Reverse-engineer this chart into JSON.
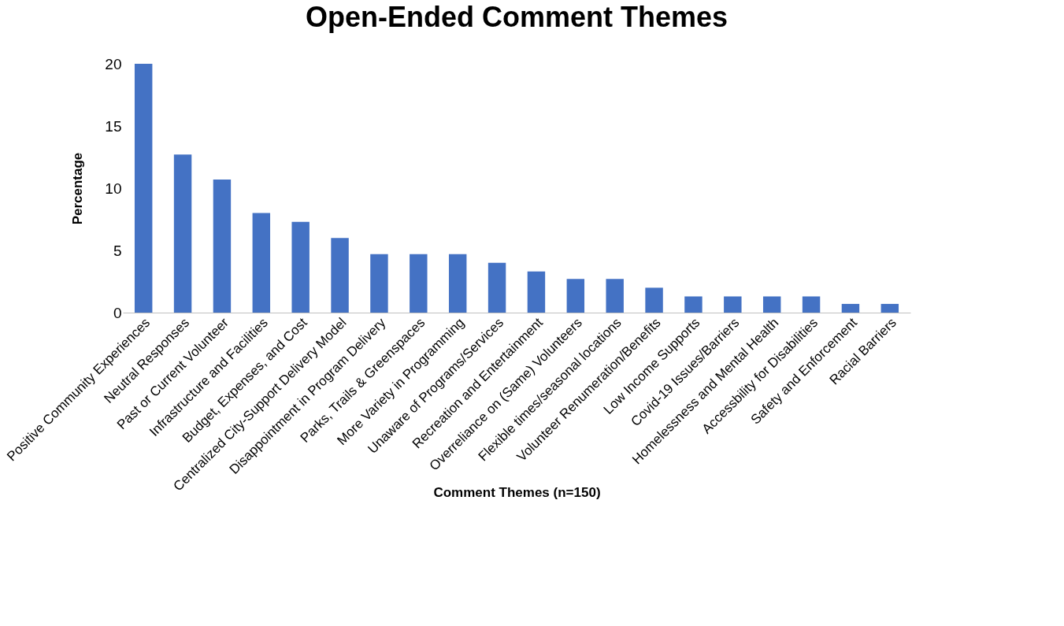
{
  "chart_data": {
    "type": "bar",
    "title": "Open-Ended Comment Themes",
    "xlabel": "Comment Themes (n=150)",
    "ylabel": "Percentage",
    "categories": [
      "Positive Community Experiences",
      "Neutral Responses",
      "Past or Current Volunteer",
      "Infrastructure and Facilities",
      "Budget, Expenses, and Cost",
      "Centralized City-Support Delivery Model",
      "Disappointment in Program Delivery",
      "Parks, Trails & Greenspaces",
      "More Variety in Programming",
      "Unaware of Programs/Services",
      "Recreation and Entertainment",
      "Overreliance on (Same) Volunteers",
      "Flexible times/seasonal locations",
      "Volunteer Renumeration/Benefits",
      "Low Income Supports",
      "Covid-19 Issues/Barriers",
      "Homelessness and Mental Health",
      "Accessbility for Disabilities",
      "Safety and Enforcement",
      "Racial Barriers"
    ],
    "values": [
      20,
      12.7,
      10.7,
      8,
      7.3,
      6,
      4.7,
      4.7,
      4.7,
      4,
      3.3,
      2.7,
      2.7,
      2,
      1.3,
      1.3,
      1.3,
      1.3,
      0.7,
      0.7
    ],
    "color": "#4472c4",
    "ylim": [
      0,
      20
    ],
    "yticks": [
      0,
      5,
      10,
      15,
      20
    ],
    "grid": false
  }
}
